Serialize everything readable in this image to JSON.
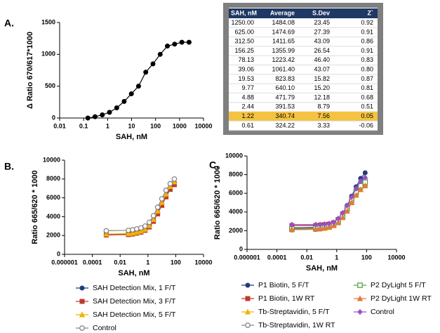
{
  "chart_data": [
    {
      "type": "line",
      "panel": "A.",
      "x_label": "SAH, nM",
      "y_label": "Δ Ratio 670/617*1000",
      "log_x": true,
      "xlim": [
        0.01,
        10000
      ],
      "xticks": [
        0.01,
        0.1,
        1,
        10,
        100,
        1000,
        10000
      ],
      "ylim": [
        0,
        1500
      ],
      "yticks": [
        0,
        500,
        1000,
        1500
      ],
      "x": [
        0.15,
        0.3,
        0.6,
        1.2,
        2.4,
        4.9,
        9.8,
        19.5,
        39,
        78,
        156,
        312,
        625,
        1250,
        2500
      ],
      "series": [
        {
          "color": "#000000",
          "marker": "circle",
          "values": [
            0,
            20,
            50,
            90,
            160,
            260,
            380,
            500,
            720,
            850,
            1000,
            1130,
            1160,
            1190,
            1190
          ]
        }
      ]
    },
    {
      "type": "line",
      "panel": "B.",
      "x_label": "SAH, nM",
      "y_label": "Ratio 665/620 * 1000",
      "log_x": true,
      "legend": "bottom",
      "legend_columns": 1,
      "xlim": [
        1e-06,
        10000
      ],
      "xticks": [
        1e-06,
        0.0001,
        0.01,
        1,
        100,
        10000
      ],
      "ylim": [
        0,
        10000
      ],
      "yticks": [
        0,
        2000,
        4000,
        6000,
        8000,
        10000
      ],
      "x": [
        0.001,
        0.039,
        0.078,
        0.156,
        0.3125,
        0.625,
        1.25,
        2.5,
        5,
        10,
        20,
        40,
        80
      ],
      "series": [
        {
          "name": "SAH Detection Mix, 1 F/T",
          "color": "#1f3d7a",
          "marker": "circle",
          "values": [
            2100,
            2150,
            2200,
            2300,
            2400,
            2600,
            3000,
            3600,
            4400,
            5300,
            6200,
            7000,
            7600
          ]
        },
        {
          "name": "SAH Detection Mix, 3 F/T",
          "color": "#c0392b",
          "marker": "square",
          "values": [
            2050,
            2100,
            2150,
            2250,
            2350,
            2550,
            2900,
            3500,
            4300,
            5200,
            6100,
            6900,
            7400
          ]
        },
        {
          "name": "SAH Detection Mix, 5 F/T",
          "color": "#f0b400",
          "marker": "triangle",
          "values": [
            2150,
            2200,
            2250,
            2350,
            2450,
            2650,
            3050,
            3700,
            4600,
            5500,
            6400,
            7200,
            7700
          ]
        },
        {
          "name": "Control",
          "color": "#888888",
          "marker": "circle-open",
          "values": [
            2500,
            2550,
            2600,
            2700,
            2800,
            3000,
            3400,
            4100,
            5000,
            5900,
            6800,
            7500,
            8000
          ]
        }
      ]
    },
    {
      "type": "line",
      "panel": "C.",
      "x_label": "SAH, nM",
      "y_label": "Ratio 665/620 * 1000",
      "log_x": true,
      "legend": "bottom",
      "legend_columns": 2,
      "xlim": [
        1e-06,
        10000
      ],
      "xticks": [
        1e-06,
        0.0001,
        0.01,
        1,
        100,
        10000
      ],
      "ylim": [
        0,
        10000
      ],
      "yticks": [
        0,
        2000,
        4000,
        6000,
        8000,
        10000
      ],
      "x": [
        0.001,
        0.039,
        0.078,
        0.156,
        0.3125,
        0.625,
        1.25,
        2.5,
        5,
        10,
        20,
        40,
        80
      ],
      "series": [
        {
          "name": "P1 Biotin, 5 F/T",
          "color": "#1f3d7a",
          "marker": "circle",
          "values": [
            2300,
            2350,
            2400,
            2450,
            2550,
            2750,
            3100,
            3800,
            4700,
            5700,
            6700,
            7600,
            8200
          ]
        },
        {
          "name": "P1 Biotin, 1W RT",
          "color": "#c0392b",
          "marker": "square",
          "values": [
            2550,
            2550,
            2600,
            2650,
            2700,
            2850,
            3200,
            3800,
            4500,
            5400,
            6200,
            6800,
            7000
          ]
        },
        {
          "name": "Tb-Streptavidin, 5 F/T",
          "color": "#f0b400",
          "marker": "triangle",
          "values": [
            2100,
            2150,
            2200,
            2250,
            2350,
            2550,
            2900,
            3500,
            4300,
            5100,
            5900,
            6600,
            7100
          ]
        },
        {
          "name": "Tb-Streptavidin, 1W RT",
          "color": "#888888",
          "marker": "circle-open",
          "values": [
            2100,
            2150,
            2200,
            2300,
            2400,
            2600,
            3000,
            3600,
            4400,
            5300,
            6200,
            7000,
            7500
          ]
        },
        {
          "name": "P2 DyLight 5 F/T",
          "color": "#5aa04a",
          "marker": "square-open",
          "values": [
            2200,
            2250,
            2300,
            2350,
            2450,
            2650,
            3000,
            3600,
            4400,
            5300,
            6100,
            6800,
            7200
          ]
        },
        {
          "name": "P2 DyLight 1W RT",
          "color": "#e07b39",
          "marker": "triangle",
          "values": [
            2150,
            2200,
            2250,
            2300,
            2400,
            2550,
            2850,
            3400,
            4100,
            5000,
            5800,
            6400,
            6800
          ]
        },
        {
          "name": "Control",
          "color": "#9b4dca",
          "marker": "diamond",
          "values": [
            2650,
            2650,
            2650,
            2700,
            2750,
            2900,
            3300,
            3900,
            4700,
            5600,
            6500,
            7300,
            7700
          ]
        }
      ]
    }
  ],
  "table": {
    "header": [
      "SAH, nM",
      "Average",
      "S.Dev",
      "Z`"
    ],
    "highlight_row": 10,
    "rows": [
      [
        "1250.00",
        "1484.08",
        "23.45",
        "0.92"
      ],
      [
        "625.00",
        "1474.69",
        "27.39",
        "0.91"
      ],
      [
        "312.50",
        "1411.65",
        "43.09",
        "0.86"
      ],
      [
        "156.25",
        "1355.99",
        "26.54",
        "0.91"
      ],
      [
        "78.13",
        "1223.42",
        "46.40",
        "0.83"
      ],
      [
        "39.06",
        "1061.40",
        "43.07",
        "0.80"
      ],
      [
        "19.53",
        "823.83",
        "15.82",
        "0.87"
      ],
      [
        "9.77",
        "640.10",
        "15.20",
        "0.81"
      ],
      [
        "4.88",
        "471.79",
        "12.18",
        "0.68"
      ],
      [
        "2.44",
        "391.53",
        "8.79",
        "0.51"
      ],
      [
        "1.22",
        "340.74",
        "7.56",
        "0.05"
      ],
      [
        "0.61",
        "324.22",
        "3.33",
        "-0.06"
      ]
    ]
  }
}
